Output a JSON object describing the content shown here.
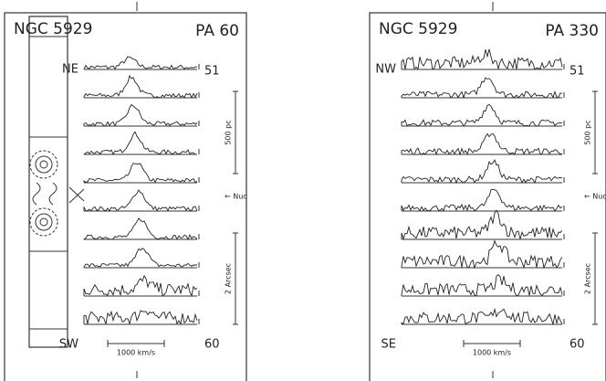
{
  "left_panel": {
    "title": "NGC 5929",
    "position_angle": "PA 60",
    "top_label": "NE",
    "top_number": 51,
    "scale_top": "500 pc",
    "nucleus": "← Nuc",
    "scale_bottom": "2 Arcsec",
    "bottom_label": "SW",
    "bottom_number": 60,
    "velocity_scale": "1000 km/s"
  },
  "right_panel": {
    "title": "NGC 5929",
    "position_angle": "PA 330",
    "top_label": "NW",
    "top_number": 51,
    "scale_top": "500 pc",
    "nucleus": "← Nuc",
    "scale_bottom": "2 Arcsec",
    "bottom_label": "SE",
    "bottom_number": 60,
    "velocity_scale": "1000 km/s"
  }
}
